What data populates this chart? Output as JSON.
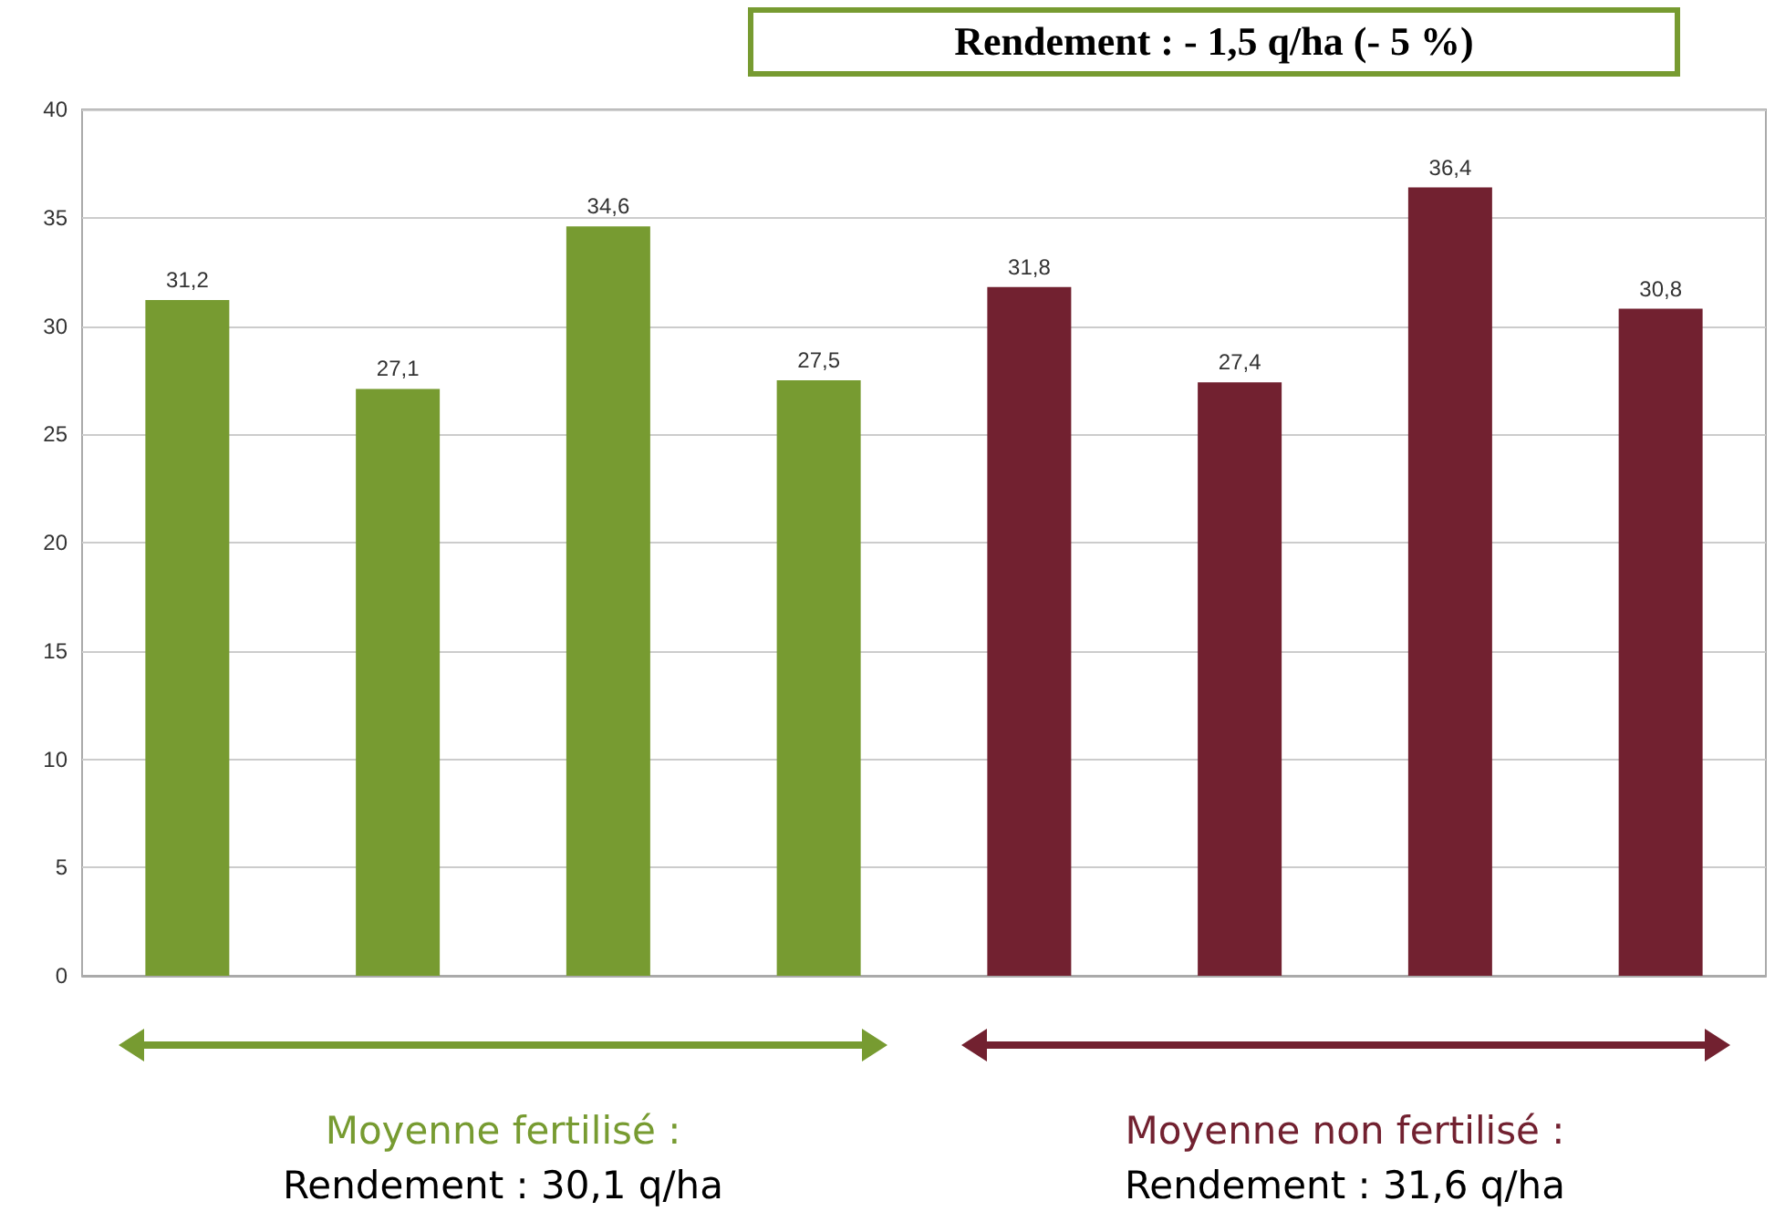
{
  "chart_data": {
    "type": "bar",
    "categories": [
      null,
      null,
      null,
      null,
      null,
      null,
      null,
      null
    ],
    "values": [
      31.2,
      27.1,
      34.6,
      27.5,
      31.8,
      27.4,
      36.4,
      30.8
    ],
    "colors": [
      "#779b31",
      "#779b31",
      "#779b31",
      "#779b31",
      "#722130",
      "#722130",
      "#722130",
      "#722130"
    ],
    "ylim": [
      0,
      40
    ],
    "yticks": [
      0,
      5,
      10,
      15,
      20,
      25,
      30,
      35,
      40
    ],
    "grid": "y",
    "value_labels": [
      "31,2",
      "27,1",
      "34,6",
      "27,5",
      "31,8",
      "27,4",
      "36,4",
      "30,8"
    ],
    "annotations": [
      "Rendement : - 1,5 q/ha (- 5 %)",
      "Moyenne fertilisé :\nRendement : 30,1 q/ha",
      "Moyenne non fertilisé :\nRendement : 31,6 q/ha"
    ]
  }
}
